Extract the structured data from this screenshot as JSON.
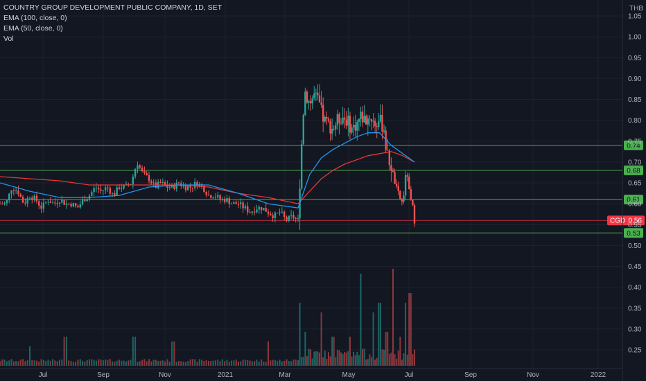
{
  "header": {
    "title": "COUNTRY GROUP DEVELOPMENT PUBLIC COMPANY, 1D, SET",
    "indicators": [
      "EMA (100, close, 0)",
      "EMA (50, close, 0)",
      "Vol"
    ]
  },
  "colors": {
    "background": "#131722",
    "grid": "#1e222d",
    "up": "#26a69a",
    "down": "#ef5350",
    "ema100": "#e53935",
    "ema50": "#2196f3",
    "level_line": "#4caf50",
    "level_tag_bg": "#4caf50",
    "price_tag_bg": "#f23645",
    "axis_text": "#b2b5be"
  },
  "chart_data": {
    "type": "candlestick",
    "currency": "THB",
    "symbol": "CGD",
    "last_price": "0.56",
    "y_ticks": [
      "1.05",
      "1.00",
      "0.95",
      "0.90",
      "0.85",
      "0.80",
      "0.75",
      "0.70",
      "0.65",
      "0.60",
      "0.55",
      "0.50",
      "0.45",
      "0.40",
      "0.35",
      "0.30",
      "0.25"
    ],
    "ylim": [
      0.2,
      1.05
    ],
    "x_ticks": [
      "Jul",
      "Sep",
      "Nov",
      "2021",
      "Mar",
      "May",
      "Jul",
      "Sep",
      "Nov",
      "2022"
    ],
    "horizontal_levels": [
      "0.74",
      "0.68",
      "0.61",
      "0.53"
    ],
    "price_series": [
      [
        0.0,
        0.6
      ],
      [
        0.02,
        0.6
      ],
      [
        0.04,
        0.64
      ],
      [
        0.06,
        0.63
      ],
      [
        0.08,
        0.6
      ],
      [
        0.1,
        0.62
      ],
      [
        0.12,
        0.61
      ],
      [
        0.14,
        0.59
      ],
      [
        0.16,
        0.61
      ],
      [
        0.18,
        0.6
      ],
      [
        0.2,
        0.61
      ],
      [
        0.22,
        0.6
      ],
      [
        0.24,
        0.6
      ],
      [
        0.26,
        0.59
      ],
      [
        0.28,
        0.61
      ],
      [
        0.3,
        0.62
      ],
      [
        0.32,
        0.64
      ],
      [
        0.34,
        0.63
      ],
      [
        0.36,
        0.64
      ],
      [
        0.38,
        0.62
      ],
      [
        0.4,
        0.64
      ],
      [
        0.42,
        0.64
      ],
      [
        0.44,
        0.65
      ],
      [
        0.46,
        0.7
      ],
      [
        0.48,
        0.67
      ],
      [
        0.5,
        0.66
      ],
      [
        0.52,
        0.64
      ],
      [
        0.54,
        0.65
      ],
      [
        0.56,
        0.64
      ],
      [
        0.58,
        0.64
      ],
      [
        0.6,
        0.65
      ],
      [
        0.62,
        0.64
      ],
      [
        0.64,
        0.64
      ],
      [
        0.66,
        0.65
      ],
      [
        0.68,
        0.64
      ],
      [
        0.7,
        0.62
      ],
      [
        0.72,
        0.62
      ],
      [
        0.74,
        0.61
      ],
      [
        0.76,
        0.61
      ],
      [
        0.78,
        0.6
      ],
      [
        0.8,
        0.6
      ],
      [
        0.82,
        0.59
      ],
      [
        0.84,
        0.58
      ],
      [
        0.86,
        0.59
      ],
      [
        0.88,
        0.59
      ],
      [
        0.9,
        0.58
      ],
      [
        0.92,
        0.57
      ],
      [
        0.94,
        0.58
      ],
      [
        0.96,
        0.56
      ],
      [
        0.98,
        0.57
      ],
      [
        1.0,
        0.56
      ],
      [
        1.01,
        0.68
      ],
      [
        1.02,
        0.8
      ],
      [
        1.03,
        0.87
      ],
      [
        1.05,
        0.84
      ],
      [
        1.07,
        0.86
      ],
      [
        1.09,
        0.84
      ],
      [
        1.11,
        0.8
      ],
      [
        1.13,
        0.79
      ],
      [
        1.15,
        0.78
      ],
      [
        1.17,
        0.8
      ],
      [
        1.19,
        0.81
      ],
      [
        1.21,
        0.8
      ],
      [
        1.23,
        0.78
      ],
      [
        1.25,
        0.79
      ],
      [
        1.27,
        0.81
      ],
      [
        1.29,
        0.8
      ],
      [
        1.31,
        0.81
      ],
      [
        1.33,
        0.79
      ],
      [
        1.35,
        0.8
      ],
      [
        1.37,
        0.78
      ],
      [
        1.38,
        0.72
      ],
      [
        1.4,
        0.69
      ],
      [
        1.42,
        0.64
      ],
      [
        1.44,
        0.61
      ],
      [
        1.45,
        0.6
      ],
      [
        1.46,
        0.66
      ],
      [
        1.47,
        0.67
      ],
      [
        1.48,
        0.61
      ],
      [
        1.49,
        0.6
      ],
      [
        1.5,
        0.56
      ]
    ],
    "ema100": [
      [
        0.0,
        0.665
      ],
      [
        0.1,
        0.66
      ],
      [
        0.2,
        0.655
      ],
      [
        0.3,
        0.645
      ],
      [
        0.4,
        0.645
      ],
      [
        0.5,
        0.645
      ],
      [
        0.6,
        0.645
      ],
      [
        0.7,
        0.64
      ],
      [
        0.8,
        0.625
      ],
      [
        0.9,
        0.615
      ],
      [
        1.0,
        0.6
      ],
      [
        1.05,
        0.63
      ],
      [
        1.1,
        0.66
      ],
      [
        1.15,
        0.68
      ],
      [
        1.2,
        0.695
      ],
      [
        1.25,
        0.705
      ],
      [
        1.3,
        0.715
      ],
      [
        1.35,
        0.72
      ],
      [
        1.4,
        0.725
      ],
      [
        1.45,
        0.715
      ],
      [
        1.5,
        0.7
      ]
    ],
    "ema50": [
      [
        0.0,
        0.65
      ],
      [
        0.1,
        0.63
      ],
      [
        0.2,
        0.615
      ],
      [
        0.3,
        0.615
      ],
      [
        0.4,
        0.62
      ],
      [
        0.5,
        0.64
      ],
      [
        0.6,
        0.645
      ],
      [
        0.7,
        0.645
      ],
      [
        0.8,
        0.625
      ],
      [
        0.9,
        0.6
      ],
      [
        1.0,
        0.59
      ],
      [
        1.05,
        0.67
      ],
      [
        1.1,
        0.71
      ],
      [
        1.15,
        0.73
      ],
      [
        1.2,
        0.745
      ],
      [
        1.25,
        0.76
      ],
      [
        1.3,
        0.77
      ],
      [
        1.35,
        0.77
      ],
      [
        1.4,
        0.74
      ],
      [
        1.45,
        0.72
      ],
      [
        1.5,
        0.7
      ]
    ],
    "volume_spikes": [
      [
        0.1,
        0.2
      ],
      [
        0.22,
        0.3
      ],
      [
        0.45,
        0.3
      ],
      [
        0.58,
        0.25
      ],
      [
        0.9,
        0.25
      ],
      [
        1.01,
        0.65
      ],
      [
        1.03,
        0.35
      ],
      [
        1.1,
        0.55
      ],
      [
        1.15,
        0.3
      ],
      [
        1.22,
        0.3
      ],
      [
        1.27,
        0.95
      ],
      [
        1.32,
        0.55
      ],
      [
        1.35,
        0.65
      ],
      [
        1.38,
        0.35
      ],
      [
        1.41,
        1.0
      ],
      [
        1.44,
        0.3
      ],
      [
        1.46,
        0.65
      ],
      [
        1.48,
        0.75
      ]
    ]
  }
}
